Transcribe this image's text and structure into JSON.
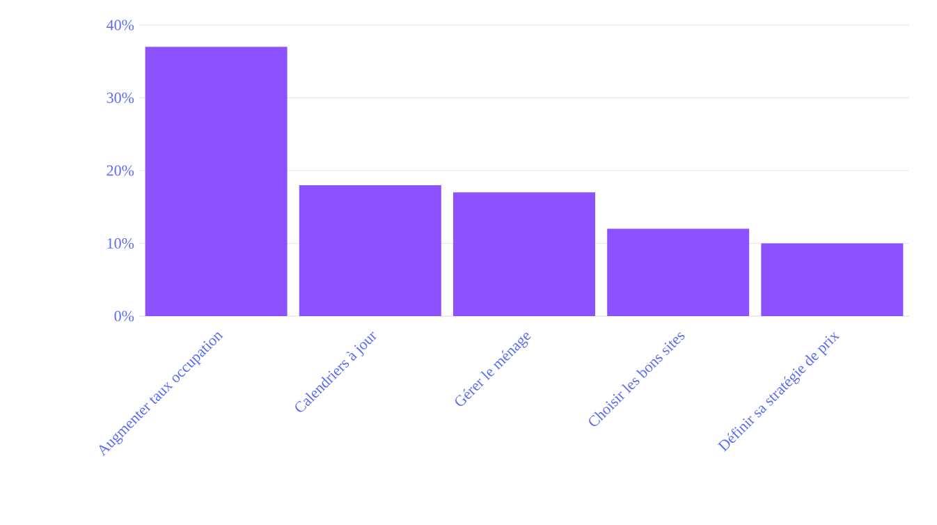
{
  "chart_data": {
    "type": "bar",
    "categories": [
      "Augmenter taux occupation",
      "Calendriers à jour",
      "Gérer le ménage",
      "Choisir les bons sites",
      "Définir sa stratégie de prix"
    ],
    "values": [
      37,
      18,
      17,
      12,
      10
    ],
    "color": "#8c52ff",
    "ylim": [
      0,
      40
    ],
    "yticks": [
      {
        "value": 0,
        "label": "0%"
      },
      {
        "value": 10,
        "label": "10%"
      },
      {
        "value": 20,
        "label": "20%"
      },
      {
        "value": 30,
        "label": "30%"
      },
      {
        "value": 40,
        "label": "40%"
      }
    ],
    "grid": "y"
  }
}
